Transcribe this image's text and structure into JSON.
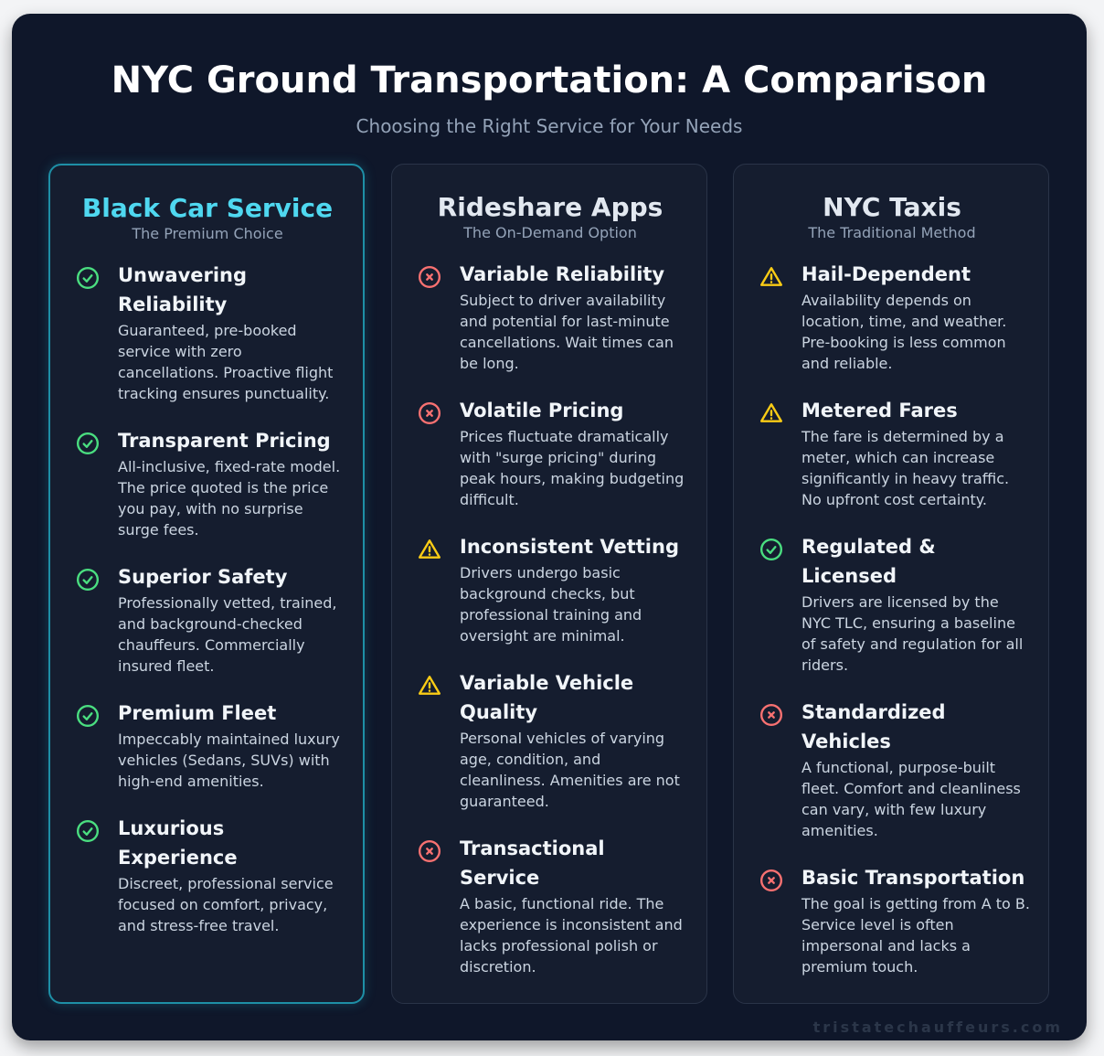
{
  "header": {
    "title": "NYC Ground Transportation: A Comparison",
    "subtitle": "Choosing the Right Service for Your Needs"
  },
  "colors": {
    "check": "#4ade80",
    "cross": "#f87171",
    "warning": "#facc15",
    "highlight": "#4fd8f0"
  },
  "columns": [
    {
      "title": "Black Car Service",
      "subtitle": "The Premium Choice",
      "items": [
        {
          "icon": "check-circle-icon",
          "title": "Unwavering Reliability",
          "desc": "Guaranteed, pre-booked service with zero cancellations. Proactive flight tracking ensures punctuality."
        },
        {
          "icon": "check-circle-icon",
          "title": "Transparent Pricing",
          "desc": "All-inclusive, fixed-rate model. The price quoted is the price you pay, with no surprise surge fees."
        },
        {
          "icon": "check-circle-icon",
          "title": "Superior Safety",
          "desc": "Professionally vetted, trained, and background-checked chauffeurs. Commercially insured fleet."
        },
        {
          "icon": "check-circle-icon",
          "title": "Premium Fleet",
          "desc": "Impeccably maintained luxury vehicles (Sedans, SUVs) with high-end amenities."
        },
        {
          "icon": "check-circle-icon",
          "title": "Luxurious Experience",
          "desc": "Discreet, professional service focused on comfort, privacy, and stress-free travel."
        }
      ]
    },
    {
      "title": "Rideshare Apps",
      "subtitle": "The On-Demand Option",
      "items": [
        {
          "icon": "x-circle-icon",
          "title": "Variable Reliability",
          "desc": "Subject to driver availability and potential for last-minute cancellations. Wait times can be long."
        },
        {
          "icon": "x-circle-icon",
          "title": "Volatile Pricing",
          "desc": "Prices fluctuate dramatically with \"surge pricing\" during peak hours, making budgeting difficult."
        },
        {
          "icon": "warning-icon",
          "title": "Inconsistent Vetting",
          "desc": "Drivers undergo basic background checks, but professional training and oversight are minimal."
        },
        {
          "icon": "warning-icon",
          "title": "Variable Vehicle Quality",
          "desc": "Personal vehicles of varying age, condition, and cleanliness. Amenities are not guaranteed."
        },
        {
          "icon": "x-circle-icon",
          "title": "Transactional Service",
          "desc": "A basic, functional ride. The experience is inconsistent and lacks professional polish or discretion."
        }
      ]
    },
    {
      "title": "NYC Taxis",
      "subtitle": "The Traditional Method",
      "items": [
        {
          "icon": "warning-icon",
          "title": "Hail-Dependent",
          "desc": "Availability depends on location, time, and weather. Pre-booking is less common and reliable."
        },
        {
          "icon": "warning-icon",
          "title": "Metered Fares",
          "desc": "The fare is determined by a meter, which can increase significantly in heavy traffic. No upfront cost certainty."
        },
        {
          "icon": "check-circle-icon",
          "title": "Regulated & Licensed",
          "desc": "Drivers are licensed by the NYC TLC, ensuring a baseline of safety and regulation for all riders."
        },
        {
          "icon": "x-circle-icon",
          "title": "Standardized Vehicles",
          "desc": "A functional, purpose-built fleet. Comfort and cleanliness can vary, with few luxury amenities."
        },
        {
          "icon": "x-circle-icon",
          "title": "Basic Transportation",
          "desc": "The goal is getting from A to B. Service level is often impersonal and lacks a premium touch."
        }
      ]
    }
  ],
  "watermark": "tristatechauffeurs.com"
}
